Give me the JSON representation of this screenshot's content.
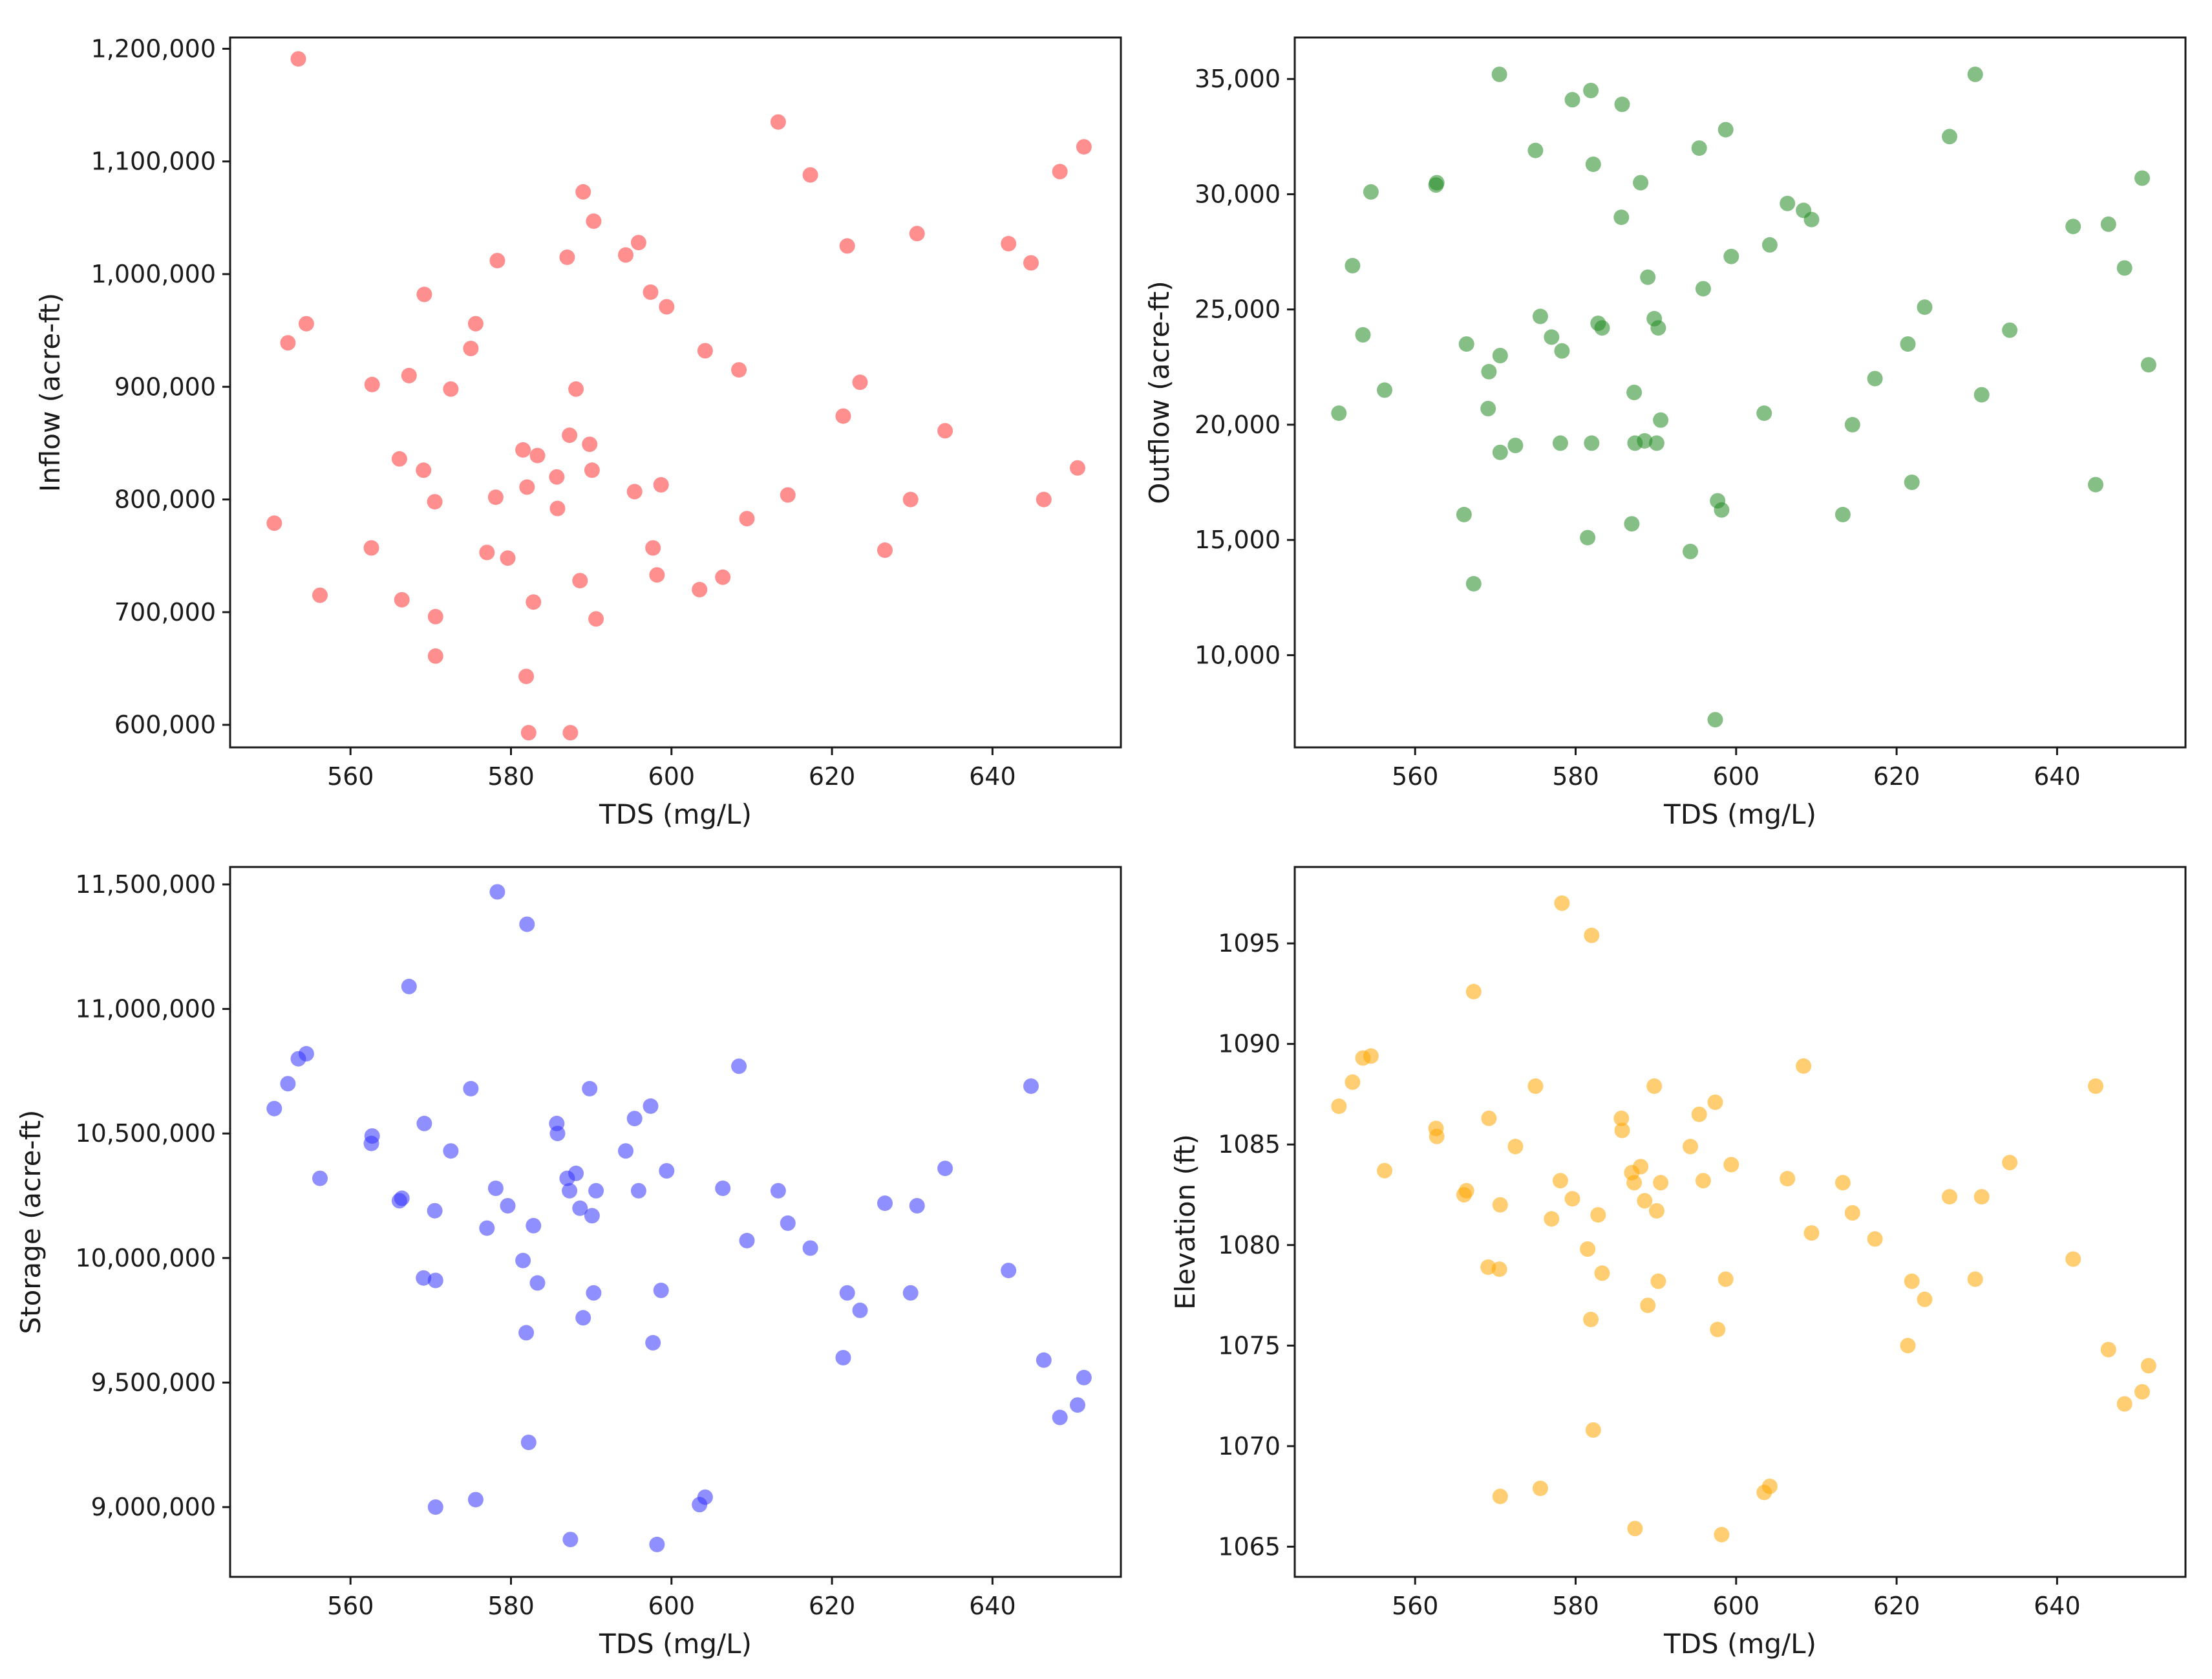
{
  "chart_data": [
    {
      "type": "scatter",
      "id": "inflow",
      "title": "",
      "xlabel": "TDS (mg/L)",
      "ylabel": "Inflow (acre-ft)",
      "xlim": [
        545,
        656
      ],
      "ylim": [
        580000,
        1210000
      ],
      "xticks": [
        560,
        580,
        600,
        620,
        640
      ],
      "xtick_labels": [
        "560",
        "580",
        "600",
        "620",
        "640"
      ],
      "yticks": [
        600000,
        700000,
        800000,
        900000,
        1000000,
        1100000,
        1200000
      ],
      "ytick_labels": [
        "600,000",
        "700,000",
        "800,000",
        "900,000",
        "1,000,000",
        "1,100,000",
        "1,200,000"
      ],
      "color": "#ff3333",
      "grid": false,
      "points": [
        [
          550.5,
          779000
        ],
        [
          552.2,
          939000
        ],
        [
          553.5,
          1191000
        ],
        [
          554.5,
          956000
        ],
        [
          556.2,
          715000
        ],
        [
          562.6,
          757000
        ],
        [
          562.7,
          902000
        ],
        [
          566.1,
          836000
        ],
        [
          566.4,
          711000
        ],
        [
          567.3,
          910000
        ],
        [
          569.1,
          826000
        ],
        [
          569.2,
          982000
        ],
        [
          570.5,
          798000
        ],
        [
          570.6,
          696000
        ],
        [
          570.6,
          661000
        ],
        [
          572.5,
          898000
        ],
        [
          575.0,
          934000
        ],
        [
          575.6,
          956000
        ],
        [
          577.0,
          753000
        ],
        [
          578.1,
          802000
        ],
        [
          578.3,
          1012000
        ],
        [
          579.6,
          748000
        ],
        [
          581.5,
          844000
        ],
        [
          581.9,
          643000
        ],
        [
          582.0,
          811000
        ],
        [
          582.2,
          593000
        ],
        [
          582.8,
          709000
        ],
        [
          583.3,
          839000
        ],
        [
          585.7,
          820000
        ],
        [
          585.8,
          792000
        ],
        [
          587.0,
          1015000
        ],
        [
          587.3,
          857000
        ],
        [
          587.4,
          593000
        ],
        [
          588.1,
          898000
        ],
        [
          588.6,
          728000
        ],
        [
          589.0,
          1073000
        ],
        [
          589.8,
          849000
        ],
        [
          590.1,
          826000
        ],
        [
          590.3,
          1047000
        ],
        [
          590.6,
          694000
        ],
        [
          594.3,
          1017000
        ],
        [
          595.4,
          807000
        ],
        [
          595.9,
          1028000
        ],
        [
          597.4,
          984000
        ],
        [
          597.7,
          757000
        ],
        [
          598.2,
          733000
        ],
        [
          598.7,
          813000
        ],
        [
          599.4,
          971000
        ],
        [
          603.5,
          720000
        ],
        [
          604.2,
          932000
        ],
        [
          606.4,
          731000
        ],
        [
          608.4,
          915000
        ],
        [
          609.4,
          783000
        ],
        [
          613.3,
          1135000
        ],
        [
          614.5,
          804000
        ],
        [
          617.3,
          1088000
        ],
        [
          621.4,
          874000
        ],
        [
          621.9,
          1025000
        ],
        [
          623.5,
          904000
        ],
        [
          626.6,
          755000
        ],
        [
          629.8,
          800000
        ],
        [
          630.6,
          1036000
        ],
        [
          634.1,
          861000
        ],
        [
          642.0,
          1027000
        ],
        [
          644.8,
          1010000
        ],
        [
          646.4,
          800000
        ],
        [
          648.4,
          1091000
        ],
        [
          650.6,
          828000
        ],
        [
          651.4,
          1113000
        ]
      ]
    },
    {
      "type": "scatter",
      "id": "outflow",
      "title": "",
      "xlabel": "TDS (mg/L)",
      "ylabel": "Outflow (acre-ft)",
      "xlim": [
        545,
        656
      ],
      "ylim": [
        6000,
        36800
      ],
      "xticks": [
        560,
        580,
        600,
        620,
        640
      ],
      "xtick_labels": [
        "560",
        "580",
        "600",
        "620",
        "640"
      ],
      "yticks": [
        10000,
        15000,
        20000,
        25000,
        30000,
        35000
      ],
      "ytick_labels": [
        "10,000",
        "15,000",
        "20,000",
        "25,000",
        "30,000",
        "35,000"
      ],
      "color": "#228b22",
      "grid": false,
      "points": [
        [
          550.5,
          20500
        ],
        [
          552.2,
          26900
        ],
        [
          553.5,
          23900
        ],
        [
          554.5,
          30100
        ],
        [
          556.2,
          21500
        ],
        [
          562.6,
          30400
        ],
        [
          562.7,
          30500
        ],
        [
          566.1,
          16100
        ],
        [
          566.4,
          23500
        ],
        [
          567.3,
          13100
        ],
        [
          569.1,
          20700
        ],
        [
          569.2,
          22300
        ],
        [
          570.5,
          35200
        ],
        [
          570.6,
          18800
        ],
        [
          570.6,
          23000
        ],
        [
          572.5,
          19100
        ],
        [
          575.0,
          31900
        ],
        [
          575.6,
          24700
        ],
        [
          577.0,
          23800
        ],
        [
          578.1,
          19200
        ],
        [
          578.3,
          23200
        ],
        [
          579.6,
          34100
        ],
        [
          581.5,
          15100
        ],
        [
          581.9,
          34500
        ],
        [
          582.0,
          19200
        ],
        [
          582.2,
          31300
        ],
        [
          582.8,
          24400
        ],
        [
          583.3,
          24200
        ],
        [
          585.7,
          29000
        ],
        [
          585.8,
          33900
        ],
        [
          587.0,
          15700
        ],
        [
          587.3,
          21400
        ],
        [
          587.4,
          19200
        ],
        [
          588.1,
          30500
        ],
        [
          588.6,
          19300
        ],
        [
          589.0,
          26400
        ],
        [
          589.8,
          24600
        ],
        [
          590.1,
          19200
        ],
        [
          590.3,
          24200
        ],
        [
          590.6,
          20200
        ],
        [
          594.3,
          14500
        ],
        [
          595.4,
          32000
        ],
        [
          595.9,
          25900
        ],
        [
          597.4,
          7200
        ],
        [
          597.7,
          16700
        ],
        [
          598.2,
          16300
        ],
        [
          598.7,
          32800
        ],
        [
          599.4,
          27300
        ],
        [
          603.5,
          20500
        ],
        [
          604.2,
          27800
        ],
        [
          606.4,
          29600
        ],
        [
          608.4,
          29300
        ],
        [
          609.4,
          28900
        ],
        [
          613.3,
          16100
        ],
        [
          614.5,
          20000
        ],
        [
          617.3,
          22000
        ],
        [
          621.4,
          23500
        ],
        [
          621.9,
          17500
        ],
        [
          623.5,
          25100
        ],
        [
          626.6,
          32500
        ],
        [
          629.8,
          35200
        ],
        [
          630.6,
          21300
        ],
        [
          634.1,
          24100
        ],
        [
          642.0,
          28600
        ],
        [
          644.8,
          17400
        ],
        [
          646.4,
          28700
        ],
        [
          648.4,
          26800
        ],
        [
          650.6,
          30700
        ],
        [
          651.4,
          22600
        ]
      ]
    },
    {
      "type": "scatter",
      "id": "storage",
      "title": "",
      "xlabel": "TDS (mg/L)",
      "ylabel": "Storage (acre-ft)",
      "xlim": [
        545,
        656
      ],
      "ylim": [
        8720000,
        11570000
      ],
      "xticks": [
        560,
        580,
        600,
        620,
        640
      ],
      "xtick_labels": [
        "560",
        "580",
        "600",
        "620",
        "640"
      ],
      "yticks": [
        9000000,
        9500000,
        10000000,
        10500000,
        11000000,
        11500000
      ],
      "ytick_labels": [
        "9,000,000",
        "9,500,000",
        "10,000,000",
        "10,500,000",
        "11,000,000",
        "11,500,000"
      ],
      "color": "#3333ff",
      "grid": false,
      "points": [
        [
          550.5,
          10600000
        ],
        [
          552.2,
          10700000
        ],
        [
          553.5,
          10800000
        ],
        [
          554.5,
          10820000
        ],
        [
          556.2,
          10320000
        ],
        [
          562.6,
          10460000
        ],
        [
          562.7,
          10490000
        ],
        [
          566.1,
          10230000
        ],
        [
          566.4,
          10240000
        ],
        [
          567.3,
          11090000
        ],
        [
          569.1,
          9920000
        ],
        [
          569.2,
          10540000
        ],
        [
          570.5,
          10190000
        ],
        [
          570.6,
          9910000
        ],
        [
          570.6,
          9000000
        ],
        [
          572.5,
          10430000
        ],
        [
          575.0,
          10680000
        ],
        [
          575.6,
          9030000
        ],
        [
          577.0,
          10120000
        ],
        [
          578.1,
          10280000
        ],
        [
          578.3,
          11470000
        ],
        [
          579.6,
          10210000
        ],
        [
          581.5,
          9990000
        ],
        [
          581.9,
          9700000
        ],
        [
          582.0,
          11340000
        ],
        [
          582.2,
          9260000
        ],
        [
          582.8,
          10130000
        ],
        [
          583.3,
          9900000
        ],
        [
          585.7,
          10540000
        ],
        [
          585.8,
          10500000
        ],
        [
          587.0,
          10320000
        ],
        [
          587.3,
          10270000
        ],
        [
          587.4,
          8870000
        ],
        [
          588.1,
          10340000
        ],
        [
          588.6,
          10200000
        ],
        [
          589.0,
          9760000
        ],
        [
          589.8,
          10680000
        ],
        [
          590.1,
          10170000
        ],
        [
          590.3,
          9860000
        ],
        [
          590.6,
          10270000
        ],
        [
          594.3,
          10430000
        ],
        [
          595.4,
          10560000
        ],
        [
          595.9,
          10270000
        ],
        [
          597.4,
          10610000
        ],
        [
          597.7,
          9660000
        ],
        [
          598.2,
          8850000
        ],
        [
          598.7,
          9870000
        ],
        [
          599.4,
          10350000
        ],
        [
          603.5,
          9010000
        ],
        [
          604.2,
          9040000
        ],
        [
          606.4,
          10280000
        ],
        [
          608.4,
          10770000
        ],
        [
          609.4,
          10070000
        ],
        [
          613.3,
          10270000
        ],
        [
          614.5,
          10140000
        ],
        [
          617.3,
          10040000
        ],
        [
          621.4,
          9600000
        ],
        [
          621.9,
          9860000
        ],
        [
          623.5,
          9790000
        ],
        [
          626.6,
          10220000
        ],
        [
          629.8,
          9860000
        ],
        [
          630.6,
          10210000
        ],
        [
          634.1,
          10360000
        ],
        [
          642.0,
          9950000
        ],
        [
          644.8,
          10690000
        ],
        [
          646.4,
          9590000
        ],
        [
          648.4,
          9360000
        ],
        [
          650.6,
          9410000
        ],
        [
          651.4,
          9520000
        ]
      ]
    },
    {
      "type": "scatter",
      "id": "elevation",
      "title": "",
      "xlabel": "TDS (mg/L)",
      "ylabel": "Elevation (ft)",
      "xlim": [
        545,
        656
      ],
      "ylim": [
        1063.5,
        1098.8
      ],
      "xticks": [
        560,
        580,
        600,
        620,
        640
      ],
      "xtick_labels": [
        "560",
        "580",
        "600",
        "620",
        "640"
      ],
      "yticks": [
        1065,
        1070,
        1075,
        1080,
        1085,
        1090,
        1095
      ],
      "ytick_labels": [
        "1065",
        "1070",
        "1075",
        "1080",
        "1085",
        "1090",
        "1095"
      ],
      "color": "#ffa500",
      "grid": false,
      "points": [
        [
          550.5,
          1086.9
        ],
        [
          552.2,
          1088.1
        ],
        [
          553.5,
          1089.3
        ],
        [
          554.5,
          1089.4
        ],
        [
          556.2,
          1083.7
        ],
        [
          562.6,
          1085.8
        ],
        [
          562.7,
          1085.4
        ],
        [
          566.1,
          1082.5
        ],
        [
          566.4,
          1082.7
        ],
        [
          567.3,
          1092.6
        ],
        [
          569.1,
          1078.9
        ],
        [
          569.2,
          1086.3
        ],
        [
          570.5,
          1078.8
        ],
        [
          570.6,
          1067.5
        ],
        [
          570.6,
          1082.0
        ],
        [
          572.5,
          1084.9
        ],
        [
          575.0,
          1087.9
        ],
        [
          575.6,
          1067.9
        ],
        [
          577.0,
          1081.3
        ],
        [
          578.1,
          1083.2
        ],
        [
          578.3,
          1097.0
        ],
        [
          579.6,
          1082.3
        ],
        [
          581.5,
          1079.8
        ],
        [
          581.9,
          1076.3
        ],
        [
          582.0,
          1095.4
        ],
        [
          582.2,
          1070.8
        ],
        [
          582.8,
          1081.5
        ],
        [
          583.3,
          1078.6
        ],
        [
          585.7,
          1086.3
        ],
        [
          585.8,
          1085.7
        ],
        [
          587.0,
          1083.6
        ],
        [
          587.3,
          1083.1
        ],
        [
          587.4,
          1065.9
        ],
        [
          588.1,
          1083.9
        ],
        [
          588.6,
          1082.2
        ],
        [
          589.0,
          1077.0
        ],
        [
          589.8,
          1087.9
        ],
        [
          590.1,
          1081.7
        ],
        [
          590.3,
          1078.2
        ],
        [
          590.6,
          1083.1
        ],
        [
          594.3,
          1084.9
        ],
        [
          595.4,
          1086.5
        ],
        [
          595.9,
          1083.2
        ],
        [
          597.4,
          1087.1
        ],
        [
          597.7,
          1075.8
        ],
        [
          598.2,
          1065.6
        ],
        [
          598.7,
          1078.3
        ],
        [
          599.4,
          1084.0
        ],
        [
          603.5,
          1067.7
        ],
        [
          604.2,
          1068.0
        ],
        [
          606.4,
          1083.3
        ],
        [
          608.4,
          1088.9
        ],
        [
          609.4,
          1080.6
        ],
        [
          613.3,
          1083.1
        ],
        [
          614.5,
          1081.6
        ],
        [
          617.3,
          1080.3
        ],
        [
          621.4,
          1075.0
        ],
        [
          621.9,
          1078.2
        ],
        [
          623.5,
          1077.3
        ],
        [
          626.6,
          1082.4
        ],
        [
          629.8,
          1078.3
        ],
        [
          630.6,
          1082.4
        ],
        [
          634.1,
          1084.1
        ],
        [
          642.0,
          1079.3
        ],
        [
          644.8,
          1087.9
        ],
        [
          646.4,
          1074.8
        ],
        [
          648.4,
          1072.1
        ],
        [
          650.6,
          1072.7
        ],
        [
          651.4,
          1074.0
        ]
      ]
    }
  ]
}
